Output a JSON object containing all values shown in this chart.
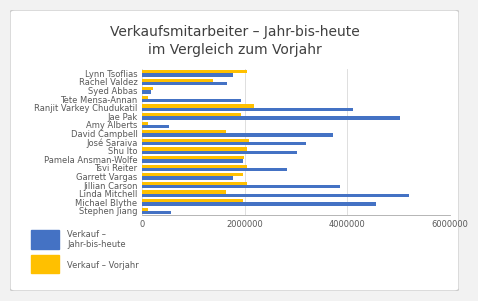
{
  "title": "Verkaufsmitarbeiter – Jahr-bis-heute\nim Vergleich zum Vorjahr",
  "names": [
    "Lynn Tsoflias",
    "Rachel Valdez",
    "Syed Abbas",
    "Tete Mensa-Annan",
    "Ranjit Varkey Chudukatil",
    "Jae Pak",
    "Amy Alberts",
    "David Campbell",
    "José Saraiva",
    "Shu Ito",
    "Pamela Ansman-Wolfe",
    "Tsvi Reiter",
    "Garrett Vargas",
    "Jillian Carson",
    "Linda Mitchell",
    "Michael Blythe",
    "Stephen Jiang"
  ],
  "ytd_sales": [
    1758385,
    1640232,
    172524,
    1931620,
    4116871,
    5015682,
    519905,
    3724932,
    3189356,
    3018725,
    1964496,
    2811012,
    1764938,
    3857163,
    5200475,
    4557045,
    559697
  ],
  "prev_sales": [
    2041940,
    1366490,
    200000,
    100000,
    2178295,
    1931620,
    100000,
    1620276,
    2073505,
    2038234,
    1980268,
    2038234,
    1968555,
    2038234,
    1620276,
    1968555,
    100000
  ],
  "bar_color_ytd": "#4472C4",
  "bar_color_prev": "#FFC000",
  "background_color": "#F2F2F2",
  "plot_bg_color": "#FFFFFF",
  "grid_color": "#D9D9D9",
  "label_color": "#595959",
  "title_color": "#404040",
  "legend_ytd": "Verkauf –\nJahr-bis-heute",
  "legend_prev": "Verkauf – Vorjahr",
  "xlim": [
    0,
    6000000
  ],
  "xticks": [
    0,
    2000000,
    4000000,
    6000000
  ],
  "bar_height": 0.38,
  "title_fontsize": 10,
  "tick_fontsize": 6,
  "label_fontsize": 6
}
